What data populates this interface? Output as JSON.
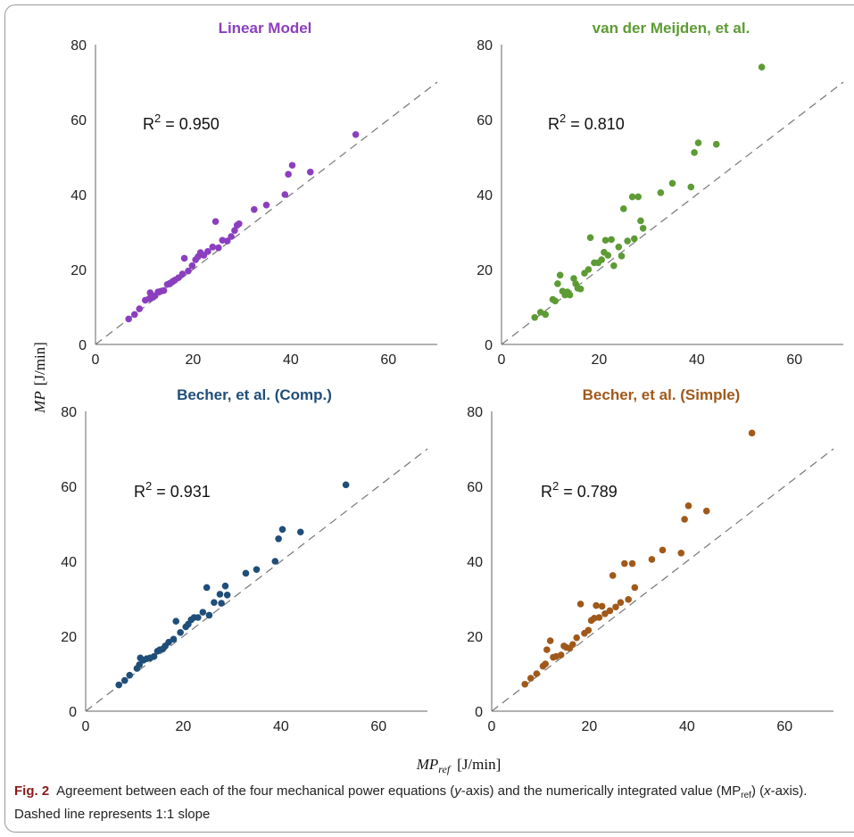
{
  "figure": {
    "number": "Fig. 2",
    "caption_part1": "Agreement between each of the four mechanical power equations (",
    "caption_yaxis": "y",
    "caption_part2": "-axis) and the numerically integrated value (MP",
    "caption_sub": "ref",
    "caption_part3": ") (",
    "caption_xaxis": "x",
    "caption_part4": "-axis). Dashed line represents 1:1 slope"
  },
  "axes": {
    "ylabel_main": "MP",
    "ylabel_unit": "[J/min]",
    "xlabel_main": "MP",
    "xlabel_sub": "ref",
    "xlabel_unit": "[J/min]"
  },
  "chart_data": [
    {
      "type": "scatter",
      "title": "Linear Model",
      "color": "#8b3fbf",
      "r2_prefix": "R",
      "r2_sup": "2",
      "r2_value": " = 0.950",
      "xlim": [
        0,
        70
      ],
      "ylim": [
        0,
        80
      ],
      "xticks": [
        0,
        20,
        40,
        60
      ],
      "yticks": [
        0,
        20,
        40,
        60,
        80
      ],
      "identity_line": true,
      "points": [
        [
          6.8,
          6.8
        ],
        [
          8,
          8
        ],
        [
          9,
          9.5
        ],
        [
          10.2,
          11.8
        ],
        [
          11,
          12.2
        ],
        [
          11.2,
          13.8
        ],
        [
          11.8,
          12.6
        ],
        [
          12.2,
          13
        ],
        [
          12.8,
          14
        ],
        [
          13.4,
          14.2
        ],
        [
          14,
          14.4
        ],
        [
          14.7,
          16
        ],
        [
          15.2,
          16.3
        ],
        [
          15.8,
          16.8
        ],
        [
          16.3,
          17.2
        ],
        [
          17,
          17.8
        ],
        [
          17.8,
          18.8
        ],
        [
          18.2,
          23
        ],
        [
          19,
          19.6
        ],
        [
          19.8,
          21
        ],
        [
          20.5,
          22.6
        ],
        [
          21,
          23.4
        ],
        [
          21.5,
          24.5
        ],
        [
          22.2,
          23.8
        ],
        [
          23,
          24.8
        ],
        [
          24,
          26
        ],
        [
          24.6,
          32.8
        ],
        [
          25.2,
          25.8
        ],
        [
          26,
          27.8
        ],
        [
          27,
          27.6
        ],
        [
          27.8,
          28.8
        ],
        [
          28.5,
          30.4
        ],
        [
          29,
          31.8
        ],
        [
          29.4,
          32.2
        ],
        [
          32.5,
          36
        ],
        [
          35,
          37.2
        ],
        [
          38.8,
          40
        ],
        [
          39.5,
          45.4
        ],
        [
          40.3,
          47.8
        ],
        [
          44,
          46
        ],
        [
          53.3,
          56
        ]
      ]
    },
    {
      "type": "scatter",
      "title": "van der Meijden, et al.",
      "color": "#5d9b34",
      "r2_prefix": "R",
      "r2_sup": "2",
      "r2_value": " = 0.810",
      "xlim": [
        0,
        70
      ],
      "ylim": [
        0,
        80
      ],
      "xticks": [
        0,
        20,
        40,
        60
      ],
      "yticks": [
        0,
        20,
        40,
        60,
        80
      ],
      "identity_line": true,
      "points": [
        [
          6.8,
          7.2
        ],
        [
          8,
          8.6
        ],
        [
          9,
          8
        ],
        [
          10.5,
          12
        ],
        [
          11,
          11.6
        ],
        [
          11.5,
          16.2
        ],
        [
          12,
          18.5
        ],
        [
          12.5,
          14.2
        ],
        [
          13,
          13.2
        ],
        [
          13.5,
          14
        ],
        [
          14,
          13.2
        ],
        [
          14.8,
          17.6
        ],
        [
          15.2,
          16.2
        ],
        [
          15.6,
          15
        ],
        [
          16.2,
          14.8
        ],
        [
          17,
          19
        ],
        [
          17.8,
          20
        ],
        [
          18.2,
          28.5
        ],
        [
          19,
          21.8
        ],
        [
          19.8,
          21.8
        ],
        [
          20.5,
          22.6
        ],
        [
          21,
          24.6
        ],
        [
          21.3,
          27.8
        ],
        [
          21.8,
          23.8
        ],
        [
          22.5,
          28
        ],
        [
          23,
          21
        ],
        [
          24,
          26
        ],
        [
          24.6,
          23.6
        ],
        [
          25,
          36.2
        ],
        [
          25.8,
          27.6
        ],
        [
          26.8,
          39.4
        ],
        [
          27.2,
          28.2
        ],
        [
          28,
          39.4
        ],
        [
          28.5,
          33
        ],
        [
          29,
          31
        ],
        [
          32.6,
          40.5
        ],
        [
          35,
          43
        ],
        [
          38.8,
          42
        ],
        [
          39.5,
          51.2
        ],
        [
          40.3,
          53.8
        ],
        [
          44,
          53.4
        ],
        [
          53.3,
          74
        ]
      ]
    },
    {
      "type": "scatter",
      "title": "Becher, et al. (Comp.)",
      "color": "#1f4e79",
      "r2_prefix": "R",
      "r2_sup": "2",
      "r2_value": " = 0.931",
      "xlim": [
        0,
        70
      ],
      "ylim": [
        0,
        80
      ],
      "xticks": [
        0,
        20,
        40,
        60
      ],
      "yticks": [
        0,
        20,
        40,
        60,
        80
      ],
      "identity_line": true,
      "points": [
        [
          6.8,
          7
        ],
        [
          8,
          8.2
        ],
        [
          9,
          9.6
        ],
        [
          10.5,
          11.4
        ],
        [
          11,
          12.4
        ],
        [
          11.2,
          14.2
        ],
        [
          11.8,
          13.6
        ],
        [
          12.5,
          14
        ],
        [
          13.2,
          14.2
        ],
        [
          14,
          14.6
        ],
        [
          14.7,
          16
        ],
        [
          15.2,
          16.4
        ],
        [
          15.8,
          16.6
        ],
        [
          16.3,
          17.4
        ],
        [
          17,
          18.4
        ],
        [
          18,
          19.2
        ],
        [
          18.5,
          24
        ],
        [
          19.4,
          21
        ],
        [
          20.5,
          22.5
        ],
        [
          21,
          23.2
        ],
        [
          21.6,
          24.4
        ],
        [
          22.2,
          25
        ],
        [
          23,
          25
        ],
        [
          24,
          26.4
        ],
        [
          24.8,
          33
        ],
        [
          25.3,
          25.6
        ],
        [
          26.3,
          29
        ],
        [
          27.5,
          31.2
        ],
        [
          27.8,
          28.8
        ],
        [
          28.6,
          33.4
        ],
        [
          29,
          31
        ],
        [
          32.8,
          36.8
        ],
        [
          35,
          37.8
        ],
        [
          38.8,
          40
        ],
        [
          39.5,
          46
        ],
        [
          40.3,
          48.5
        ],
        [
          44,
          47.8
        ],
        [
          53.3,
          60.4
        ]
      ]
    },
    {
      "type": "scatter",
      "title": "Becher, et al. (Simple)",
      "color": "#a0591a",
      "r2_prefix": "R",
      "r2_sup": "2",
      "r2_value": " = 0.789",
      "xlim": [
        0,
        70
      ],
      "ylim": [
        0,
        80
      ],
      "xticks": [
        0,
        20,
        40,
        60
      ],
      "yticks": [
        0,
        20,
        40,
        60,
        80
      ],
      "identity_line": true,
      "points": [
        [
          6.8,
          7.2
        ],
        [
          8,
          8.8
        ],
        [
          9.2,
          10
        ],
        [
          10.5,
          12
        ],
        [
          11,
          12.6
        ],
        [
          11.3,
          16.4
        ],
        [
          12,
          18.8
        ],
        [
          12.6,
          14.4
        ],
        [
          13.2,
          14.6
        ],
        [
          14.2,
          15
        ],
        [
          14.8,
          17.4
        ],
        [
          15.3,
          17
        ],
        [
          16,
          16.8
        ],
        [
          16.6,
          17.8
        ],
        [
          17.4,
          19.6
        ],
        [
          18.2,
          28.6
        ],
        [
          19,
          20.8
        ],
        [
          19.8,
          21.6
        ],
        [
          20.4,
          24.2
        ],
        [
          21,
          24.8
        ],
        [
          21.4,
          28.2
        ],
        [
          22,
          25
        ],
        [
          22.6,
          28
        ],
        [
          23.2,
          26
        ],
        [
          24.2,
          26.8
        ],
        [
          24.8,
          36.2
        ],
        [
          25.4,
          27.8
        ],
        [
          26.4,
          29
        ],
        [
          27.2,
          39.4
        ],
        [
          28,
          29.8
        ],
        [
          28.8,
          39.4
        ],
        [
          29.3,
          33
        ],
        [
          32.8,
          40.5
        ],
        [
          35,
          43
        ],
        [
          38.8,
          42.2
        ],
        [
          39.5,
          51.2
        ],
        [
          40.3,
          54.8
        ],
        [
          44,
          53.4
        ],
        [
          53.3,
          74.2
        ]
      ]
    }
  ]
}
